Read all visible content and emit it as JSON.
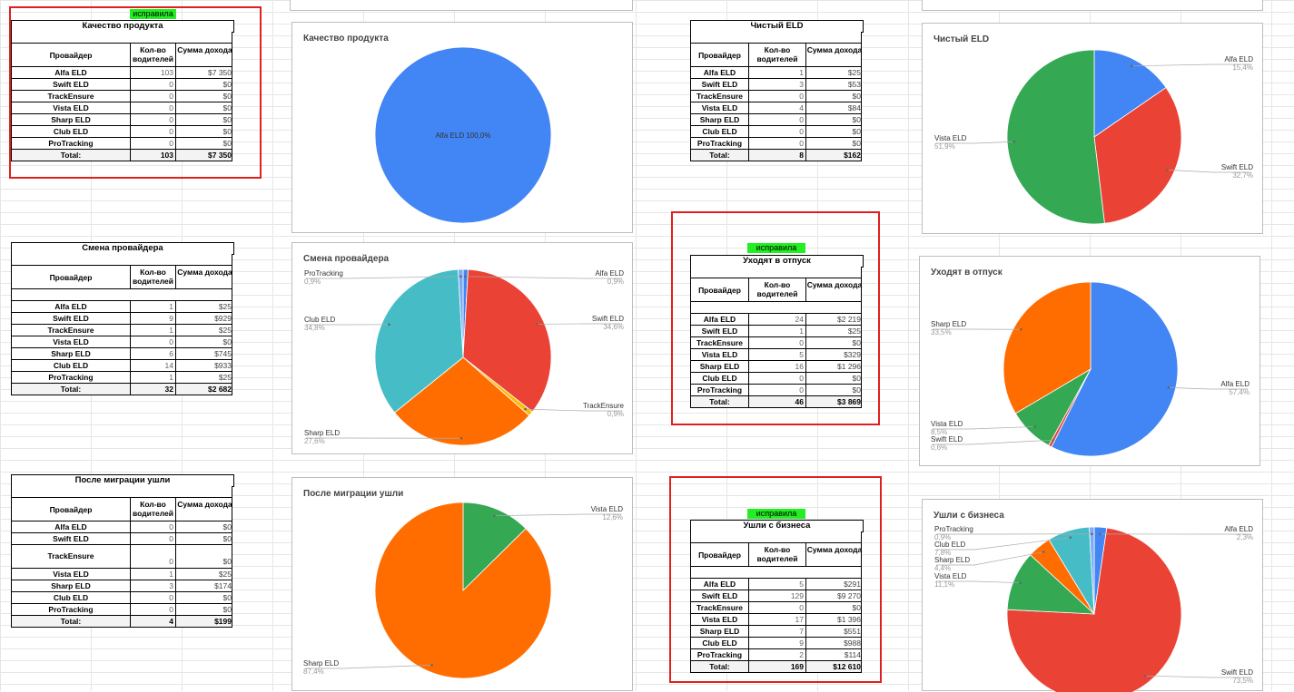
{
  "tables": [
    {
      "id": "t1",
      "title": "Качество продукта",
      "badge": "исправила",
      "headers": [
        "Провайдер",
        "Кол-во водителей",
        "Сумма дохода"
      ],
      "rows": [
        [
          "Alfa ELD",
          "103",
          "$7 350"
        ],
        [
          "Swift ELD",
          "0",
          "$0"
        ],
        [
          "TrackEnsure",
          "0",
          "$0"
        ],
        [
          "Vista ELD",
          "0",
          "$0"
        ],
        [
          "Sharp ELD",
          "0",
          "$0"
        ],
        [
          "Club ELD",
          "0",
          "$0"
        ],
        [
          "ProTracking",
          "0",
          "$0"
        ]
      ],
      "total": [
        "Total:",
        "103",
        "$7 350"
      ]
    },
    {
      "id": "t2",
      "title": "Смена провайдера",
      "headers": [
        "Провайдер",
        "Кол-во водителей",
        "Сумма дохода"
      ],
      "rows": [
        [
          "Alfa ELD",
          "1",
          "$25"
        ],
        [
          "Swift ELD",
          "9",
          "$929"
        ],
        [
          "TrackEnsure",
          "1",
          "$25"
        ],
        [
          "Vista ELD",
          "0",
          "$0"
        ],
        [
          "Sharp ELD",
          "6",
          "$745"
        ],
        [
          "Club ELD",
          "14",
          "$933"
        ],
        [
          "ProTracking",
          "1",
          "$25"
        ]
      ],
      "total": [
        "Total:",
        "32",
        "$2 682"
      ]
    },
    {
      "id": "t3",
      "title": "После миграции ушли",
      "headers": [
        "Провайдер",
        "Кол-во водителей",
        "Сумма дохода"
      ],
      "rows": [
        [
          "Alfa ELD",
          "0",
          "$0"
        ],
        [
          "Swift ELD",
          "0",
          "$0"
        ],
        [
          "TrackEnsure",
          "0",
          "$0"
        ],
        [
          "Vista ELD",
          "1",
          "$25"
        ],
        [
          "Sharp ELD",
          "3",
          "$174"
        ],
        [
          "Club ELD",
          "0",
          "$0"
        ],
        [
          "ProTracking",
          "0",
          "$0"
        ]
      ],
      "total": [
        "Total:",
        "4",
        "$199"
      ]
    },
    {
      "id": "t4",
      "title": "Чистый ELD",
      "headers": [
        "Провайдер",
        "Кол-во водителей",
        "Сумма дохода"
      ],
      "rows": [
        [
          "Alfa ELD",
          "1",
          "$25"
        ],
        [
          "Swift ELD",
          "3",
          "$53"
        ],
        [
          "TrackEnsure",
          "0",
          "$0"
        ],
        [
          "Vista ELD",
          "4",
          "$84"
        ],
        [
          "Sharp ELD",
          "0",
          "$0"
        ],
        [
          "Club ELD",
          "0",
          "$0"
        ],
        [
          "ProTracking",
          "0",
          "$0"
        ]
      ],
      "total": [
        "Total:",
        "8",
        "$162"
      ]
    },
    {
      "id": "t5",
      "title": "Уходят в отпуск",
      "badge": "исправила",
      "headers": [
        "Провайдер",
        "Кол-во водителей",
        "Сумма дохода"
      ],
      "rows": [
        [
          "Alfa ELD",
          "24",
          "$2 219"
        ],
        [
          "Swift ELD",
          "1",
          "$25"
        ],
        [
          "TrackEnsure",
          "0",
          "$0"
        ],
        [
          "Vista ELD",
          "5",
          "$329"
        ],
        [
          "Sharp ELD",
          "16",
          "$1 296"
        ],
        [
          "Club ELD",
          "0",
          "$0"
        ],
        [
          "ProTracking",
          "0",
          "$0"
        ]
      ],
      "total": [
        "Total:",
        "46",
        "$3 869"
      ]
    },
    {
      "id": "t6",
      "title": "Ушли с бизнеса",
      "badge": "исправила",
      "headers": [
        "Провайдер",
        "Кол-во водителей",
        "Сумма дохода"
      ],
      "rows": [
        [
          "Alfa ELD",
          "5",
          "$291"
        ],
        [
          "Swift ELD",
          "129",
          "$9 270"
        ],
        [
          "TrackEnsure",
          "0",
          "$0"
        ],
        [
          "Vista ELD",
          "17",
          "$1 396"
        ],
        [
          "Sharp ELD",
          "7",
          "$551"
        ],
        [
          "Club ELD",
          "9",
          "$988"
        ],
        [
          "ProTracking",
          "2",
          "$114"
        ]
      ],
      "total": [
        "Total:",
        "169",
        "$12 610"
      ]
    }
  ],
  "colors": {
    "Alfa ELD": "#4285f4",
    "Swift ELD": "#ea4335",
    "TrackEnsure": "#fbbc04",
    "Vista ELD": "#34a853",
    "Sharp ELD": "#ff6d01",
    "Club ELD": "#46bdc6",
    "ProTracking": "#7baaf7"
  },
  "chart_data": [
    {
      "type": "pie",
      "title": "Качество продукта",
      "labels": [
        "Alfa ELD"
      ],
      "values": [
        100.0
      ],
      "display": [
        "100,0%"
      ]
    },
    {
      "type": "pie",
      "title": "Смена провайдера",
      "labels": [
        "Alfa ELD",
        "Swift ELD",
        "TrackEnsure",
        "Sharp ELD",
        "Club ELD",
        "ProTracking"
      ],
      "values": [
        0.9,
        34.6,
        0.9,
        27.6,
        34.8,
        0.9
      ],
      "display": [
        "0,9%",
        "34,6%",
        "0,9%",
        "27,6%",
        "34,8%",
        "0,9%"
      ]
    },
    {
      "type": "pie",
      "title": "После миграции ушли",
      "labels": [
        "Vista ELD",
        "Sharp ELD"
      ],
      "values": [
        12.6,
        87.4
      ],
      "display": [
        "12,6%",
        "87,4%"
      ]
    },
    {
      "type": "pie",
      "title": "Чистый ELD",
      "labels": [
        "Alfa ELD",
        "Swift ELD",
        "Vista ELD"
      ],
      "values": [
        15.4,
        32.7,
        51.9
      ],
      "display": [
        "15,4%",
        "32,7%",
        "51,9%"
      ]
    },
    {
      "type": "pie",
      "title": "Уходят в отпуск",
      "labels": [
        "Alfa ELD",
        "Swift ELD",
        "Vista ELD",
        "Sharp ELD"
      ],
      "values": [
        57.4,
        0.6,
        8.5,
        33.5
      ],
      "display": [
        "57,4%",
        "0,6%",
        "8,5%",
        "33,5%"
      ]
    },
    {
      "type": "pie",
      "title": "Ушли с бизнеса",
      "labels": [
        "Alfa ELD",
        "Swift ELD",
        "Vista ELD",
        "Sharp ELD",
        "Club ELD",
        "ProTracking"
      ],
      "values": [
        2.3,
        73.5,
        11.1,
        4.4,
        7.8,
        0.9
      ],
      "display": [
        "2,3%",
        "73,5%",
        "11,1%",
        "4,4%",
        "7,8%",
        "0,9%"
      ]
    }
  ]
}
